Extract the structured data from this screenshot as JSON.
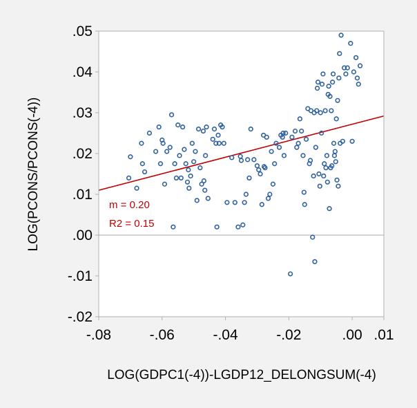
{
  "chart_data": {
    "type": "scatter",
    "xlabel": "LOG(GDPC1(-4))-LGDP12_DELONGSUM(-4)",
    "ylabel": "LOG(PCONS/PCONS(-4))",
    "xlim": [
      -0.08,
      0.01
    ],
    "ylim": [
      -0.02,
      0.05
    ],
    "x_ticks": [
      {
        "value": -0.08,
        "label": "-.08"
      },
      {
        "value": -0.06,
        "label": "-.06"
      },
      {
        "value": -0.04,
        "label": "-.04"
      },
      {
        "value": -0.02,
        "label": "-.02"
      },
      {
        "value": 0.0,
        "label": ".00"
      },
      {
        "value": 0.01,
        "label": ".01"
      }
    ],
    "y_ticks": [
      {
        "value": -0.02,
        "label": "-.02"
      },
      {
        "value": -0.01,
        "label": "-.01"
      },
      {
        "value": 0.0,
        "label": ".00"
      },
      {
        "value": 0.01,
        "label": ".01"
      },
      {
        "value": 0.02,
        "label": ".02"
      },
      {
        "value": 0.03,
        "label": ".03"
      },
      {
        "value": 0.04,
        "label": ".04"
      },
      {
        "value": 0.05,
        "label": ".05"
      }
    ],
    "grid": false,
    "zero_line": true,
    "regression_line": {
      "x": [
        -0.08,
        0.01
      ],
      "y": [
        0.011,
        0.0292
      ],
      "color": "#c00000"
    },
    "annotations": [
      {
        "text": "m = 0.20",
        "color": "#c00000"
      },
      {
        "text": "R2 = 0.15",
        "color": "#c00000"
      }
    ],
    "marker_color": "#2e5f9e",
    "points": [
      [
        -0.0705,
        0.014
      ],
      [
        -0.07,
        0.0192
      ],
      [
        -0.068,
        0.0115
      ],
      [
        -0.0665,
        0.0225
      ],
      [
        -0.0662,
        0.0175
      ],
      [
        -0.0655,
        0.0155
      ],
      [
        -0.064,
        0.025
      ],
      [
        -0.062,
        0.0205
      ],
      [
        -0.061,
        0.0265
      ],
      [
        -0.0605,
        0.0175
      ],
      [
        -0.06,
        0.0233
      ],
      [
        -0.0597,
        0.0225
      ],
      [
        -0.0592,
        0.0125
      ],
      [
        -0.0585,
        0.0205
      ],
      [
        -0.0575,
        0.0215
      ],
      [
        -0.057,
        0.0295
      ],
      [
        -0.0565,
        0.002
      ],
      [
        -0.056,
        0.0175
      ],
      [
        -0.0555,
        0.014
      ],
      [
        -0.055,
        0.027
      ],
      [
        -0.0545,
        0.0195
      ],
      [
        -0.054,
        0.014
      ],
      [
        -0.0535,
        0.0265
      ],
      [
        -0.053,
        0.021
      ],
      [
        -0.0525,
        0.0175
      ],
      [
        -0.052,
        0.013
      ],
      [
        -0.0517,
        0.016
      ],
      [
        -0.0515,
        0.0115
      ],
      [
        -0.051,
        0.0145
      ],
      [
        -0.0505,
        0.0225
      ],
      [
        -0.05,
        0.018
      ],
      [
        -0.0495,
        0.0205
      ],
      [
        -0.049,
        0.0085
      ],
      [
        -0.0485,
        0.026
      ],
      [
        -0.048,
        0.0165
      ],
      [
        -0.0475,
        0.0125
      ],
      [
        -0.047,
        0.0255
      ],
      [
        -0.0468,
        0.0133
      ],
      [
        -0.0465,
        0.011
      ],
      [
        -0.0463,
        0.0195
      ],
      [
        -0.046,
        0.0265
      ],
      [
        -0.0455,
        0.009
      ],
      [
        -0.044,
        0.0235
      ],
      [
        -0.0435,
        0.026
      ],
      [
        -0.043,
        0.0225
      ],
      [
        -0.0427,
        0.002
      ],
      [
        -0.0423,
        0.0245
      ],
      [
        -0.042,
        0.0225
      ],
      [
        -0.0415,
        0.027
      ],
      [
        -0.041,
        0.0265
      ],
      [
        -0.0405,
        0.0225
      ],
      [
        -0.0395,
        0.008
      ],
      [
        -0.038,
        0.019
      ],
      [
        -0.037,
        0.008
      ],
      [
        -0.036,
        0.002
      ],
      [
        -0.0353,
        0.0193
      ],
      [
        -0.035,
        0.0183
      ],
      [
        -0.0345,
        0.0025
      ],
      [
        -0.034,
        0.008
      ],
      [
        -0.0335,
        0.01
      ],
      [
        -0.033,
        0.0185
      ],
      [
        -0.0325,
        0.014
      ],
      [
        -0.032,
        0.026
      ],
      [
        -0.031,
        0.0185
      ],
      [
        -0.03,
        0.017
      ],
      [
        -0.0295,
        0.016
      ],
      [
        -0.029,
        0.015
      ],
      [
        -0.0285,
        0.0075
      ],
      [
        -0.028,
        0.0245
      ],
      [
        -0.0278,
        0.0168
      ],
      [
        -0.0275,
        0.0165
      ],
      [
        -0.027,
        0.024
      ],
      [
        -0.0265,
        0.009
      ],
      [
        -0.026,
        0.01
      ],
      [
        -0.0255,
        0.0205
      ],
      [
        -0.025,
        0.0125
      ],
      [
        -0.0245,
        0.0175
      ],
      [
        -0.024,
        0.0225
      ],
      [
        -0.023,
        0.0215
      ],
      [
        -0.0225,
        0.0245
      ],
      [
        -0.022,
        0.024
      ],
      [
        -0.0218,
        0.025
      ],
      [
        -0.0215,
        0.0195
      ],
      [
        -0.021,
        0.025
      ],
      [
        -0.0195,
        -0.0095
      ],
      [
        -0.019,
        0.024
      ],
      [
        -0.018,
        0.0255
      ],
      [
        -0.0175,
        0.0215
      ],
      [
        -0.017,
        0.0225
      ],
      [
        -0.0165,
        0.0285
      ],
      [
        -0.016,
        0.0255
      ],
      [
        -0.0155,
        0.0195
      ],
      [
        -0.0152,
        0.0105
      ],
      [
        -0.015,
        0.0075
      ],
      [
        -0.0145,
        0.0235
      ],
      [
        -0.014,
        0.031
      ],
      [
        -0.0135,
        0.0175
      ],
      [
        -0.0132,
        0.0183
      ],
      [
        -0.013,
        0.0305
      ],
      [
        -0.0125,
        -0.0005
      ],
      [
        -0.0122,
        0.0145
      ],
      [
        -0.012,
        0.03
      ],
      [
        -0.0118,
        -0.0065
      ],
      [
        -0.0115,
        0.0215
      ],
      [
        -0.0112,
        0.0305
      ],
      [
        -0.011,
        0.036
      ],
      [
        -0.0108,
        0.0375
      ],
      [
        -0.0105,
        0.015
      ],
      [
        -0.0102,
        0.012
      ],
      [
        -0.01,
        0.03
      ],
      [
        -0.0097,
        0.025
      ],
      [
        -0.0095,
        0.037
      ],
      [
        -0.0092,
        0.0395
      ],
      [
        -0.009,
        0.0145
      ],
      [
        -0.0088,
        0.0175
      ],
      [
        -0.0085,
        0.0305
      ],
      [
        -0.0083,
        0.0165
      ],
      [
        -0.008,
        0.0195
      ],
      [
        -0.0078,
        0.013
      ],
      [
        -0.0076,
        0.0345
      ],
      [
        -0.0074,
        0.0365
      ],
      [
        -0.0072,
        0.0065
      ],
      [
        -0.007,
        0.034
      ],
      [
        -0.0068,
        0.0165
      ],
      [
        -0.0066,
        0.0305
      ],
      [
        -0.0064,
        0.017
      ],
      [
        -0.0062,
        0.0375
      ],
      [
        -0.006,
        0.0395
      ],
      [
        -0.0058,
        0.0225
      ],
      [
        -0.0056,
        0.0195
      ],
      [
        -0.0054,
        0.0205
      ],
      [
        -0.0052,
        0.018
      ],
      [
        -0.005,
        0.0285
      ],
      [
        -0.0048,
        0.0135
      ],
      [
        -0.0046,
        0.033
      ],
      [
        -0.0044,
        0.012
      ],
      [
        -0.0042,
        0.0385
      ],
      [
        -0.004,
        0.0445
      ],
      [
        -0.0038,
        0.0225
      ],
      [
        -0.0035,
        0.049
      ],
      [
        -0.003,
        0.023
      ],
      [
        -0.0025,
        0.041
      ],
      [
        -0.002,
        0.0395
      ],
      [
        -0.0015,
        0.041
      ],
      [
        -0.0005,
        0.047
      ],
      [
        0.0,
        0.023
      ],
      [
        0.0005,
        0.04
      ],
      [
        0.0012,
        0.0435
      ],
      [
        0.0016,
        0.0385
      ],
      [
        0.002,
        0.037
      ],
      [
        0.0025,
        0.0415
      ]
    ]
  }
}
